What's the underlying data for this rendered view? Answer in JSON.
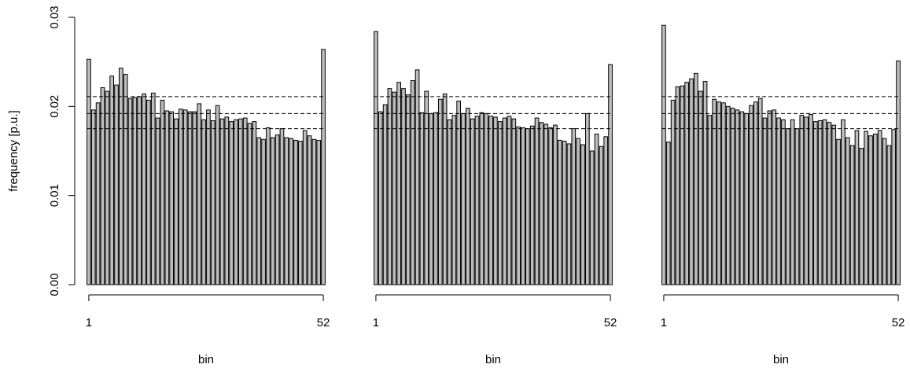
{
  "colors": {
    "bar_fill": "#bebebe",
    "stroke": "#000000",
    "background": "#ffffff"
  },
  "ylabel": "frequency [p.u.]",
  "ylim": [
    0,
    0.03
  ],
  "yticks": [
    "0.00",
    "0.01",
    "0.02",
    "0.03"
  ],
  "ytick_values": [
    0,
    0.01,
    0.02,
    0.03
  ],
  "chart_data": [
    {
      "type": "bar",
      "xlabel": "bin",
      "xtick_labels": [
        "1",
        "52"
      ],
      "ylim": [
        0,
        0.03
      ],
      "reference_lines": {
        "mean": 0.0192,
        "lower": 0.0175,
        "upper": 0.0211,
        "style": "dashed"
      },
      "values": [
        0.0253,
        0.0196,
        0.0204,
        0.0221,
        0.0217,
        0.0234,
        0.0224,
        0.0243,
        0.0236,
        0.0209,
        0.021,
        0.0211,
        0.0214,
        0.0207,
        0.0215,
        0.0187,
        0.0207,
        0.0195,
        0.0194,
        0.0186,
        0.0197,
        0.0196,
        0.0194,
        0.0194,
        0.0203,
        0.0185,
        0.0196,
        0.0184,
        0.0201,
        0.0186,
        0.0188,
        0.0183,
        0.0185,
        0.0186,
        0.0187,
        0.0181,
        0.0183,
        0.0165,
        0.0163,
        0.0176,
        0.0165,
        0.0168,
        0.0175,
        0.0165,
        0.0164,
        0.0162,
        0.0161,
        0.0173,
        0.0167,
        0.0163,
        0.0162,
        0.0264
      ]
    },
    {
      "type": "bar",
      "xlabel": "bin",
      "xtick_labels": [
        "1",
        "52"
      ],
      "ylim": [
        0,
        0.03
      ],
      "reference_lines": {
        "mean": 0.0192,
        "lower": 0.0175,
        "upper": 0.0211,
        "style": "dashed"
      },
      "values": [
        0.0284,
        0.0194,
        0.0202,
        0.022,
        0.0216,
        0.0227,
        0.022,
        0.0213,
        0.0229,
        0.0241,
        0.0193,
        0.0217,
        0.0192,
        0.0193,
        0.0208,
        0.0214,
        0.0185,
        0.019,
        0.0206,
        0.0192,
        0.0198,
        0.0186,
        0.0189,
        0.0193,
        0.0192,
        0.0189,
        0.0188,
        0.0183,
        0.0187,
        0.0189,
        0.0186,
        0.0177,
        0.0176,
        0.0175,
        0.0178,
        0.0187,
        0.0182,
        0.018,
        0.0176,
        0.0179,
        0.0162,
        0.0161,
        0.0158,
        0.0175,
        0.0164,
        0.0157,
        0.0192,
        0.015,
        0.0169,
        0.0155,
        0.0166,
        0.0247
      ]
    },
    {
      "type": "bar",
      "xlabel": "bin",
      "xtick_labels": [
        "1",
        "52"
      ],
      "ylim": [
        0,
        0.03
      ],
      "reference_lines": {
        "mean": 0.0192,
        "lower": 0.0175,
        "upper": 0.0211,
        "style": "dashed"
      },
      "values": [
        0.0291,
        0.016,
        0.0207,
        0.0222,
        0.0223,
        0.0227,
        0.0231,
        0.0237,
        0.0217,
        0.0228,
        0.019,
        0.0208,
        0.0205,
        0.0204,
        0.02,
        0.0198,
        0.0196,
        0.0194,
        0.0192,
        0.0201,
        0.0205,
        0.0209,
        0.0187,
        0.0195,
        0.0196,
        0.0187,
        0.0185,
        0.0175,
        0.0185,
        0.0175,
        0.019,
        0.0188,
        0.0191,
        0.0183,
        0.0184,
        0.0185,
        0.0182,
        0.0179,
        0.0163,
        0.0185,
        0.0165,
        0.0156,
        0.0173,
        0.0153,
        0.0172,
        0.0167,
        0.0169,
        0.0173,
        0.0164,
        0.0156,
        0.0174,
        0.0251
      ]
    }
  ]
}
